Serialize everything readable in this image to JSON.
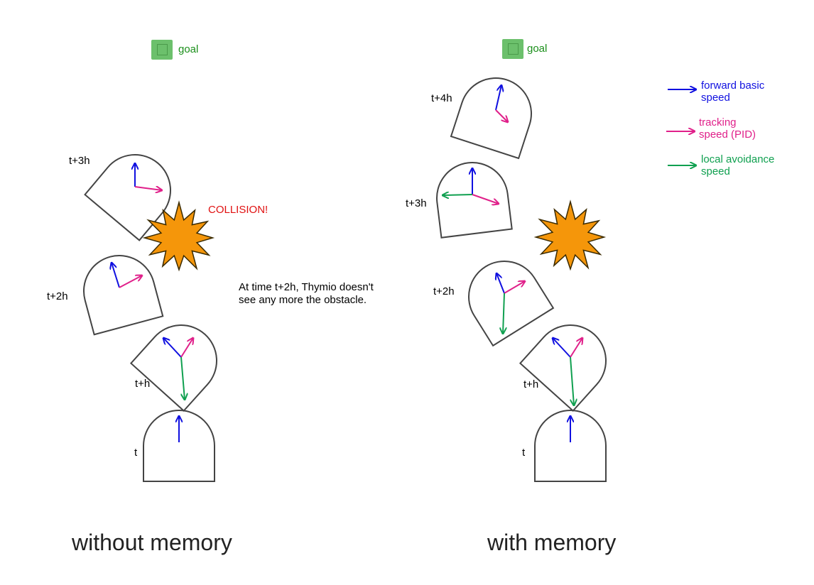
{
  "colors": {
    "forward": "#1010e0",
    "tracking": "#e0208a",
    "avoidance": "#10a050",
    "goal": "#6cc06c",
    "collision_text": "#e01010",
    "star_fill": "#f5960a",
    "outline": "#444444"
  },
  "left": {
    "goal_label": "goal",
    "time_labels": [
      "t",
      "t+h",
      "t+2h",
      "t+3h"
    ],
    "collision_label": "COLLISION!",
    "note_lines": [
      "At time t+2h, Thymio doesn't",
      "see any more the obstacle."
    ],
    "caption": "without memory"
  },
  "right": {
    "goal_label": "goal",
    "time_labels": [
      "t",
      "t+h",
      "t+2h",
      "t+3h",
      "t+4h"
    ],
    "caption": "with memory"
  },
  "legend": {
    "forward": [
      "forward basic",
      "speed"
    ],
    "tracking": [
      "tracking",
      "speed (PID)"
    ],
    "avoidance": [
      "local avoidance",
      "speed"
    ]
  }
}
